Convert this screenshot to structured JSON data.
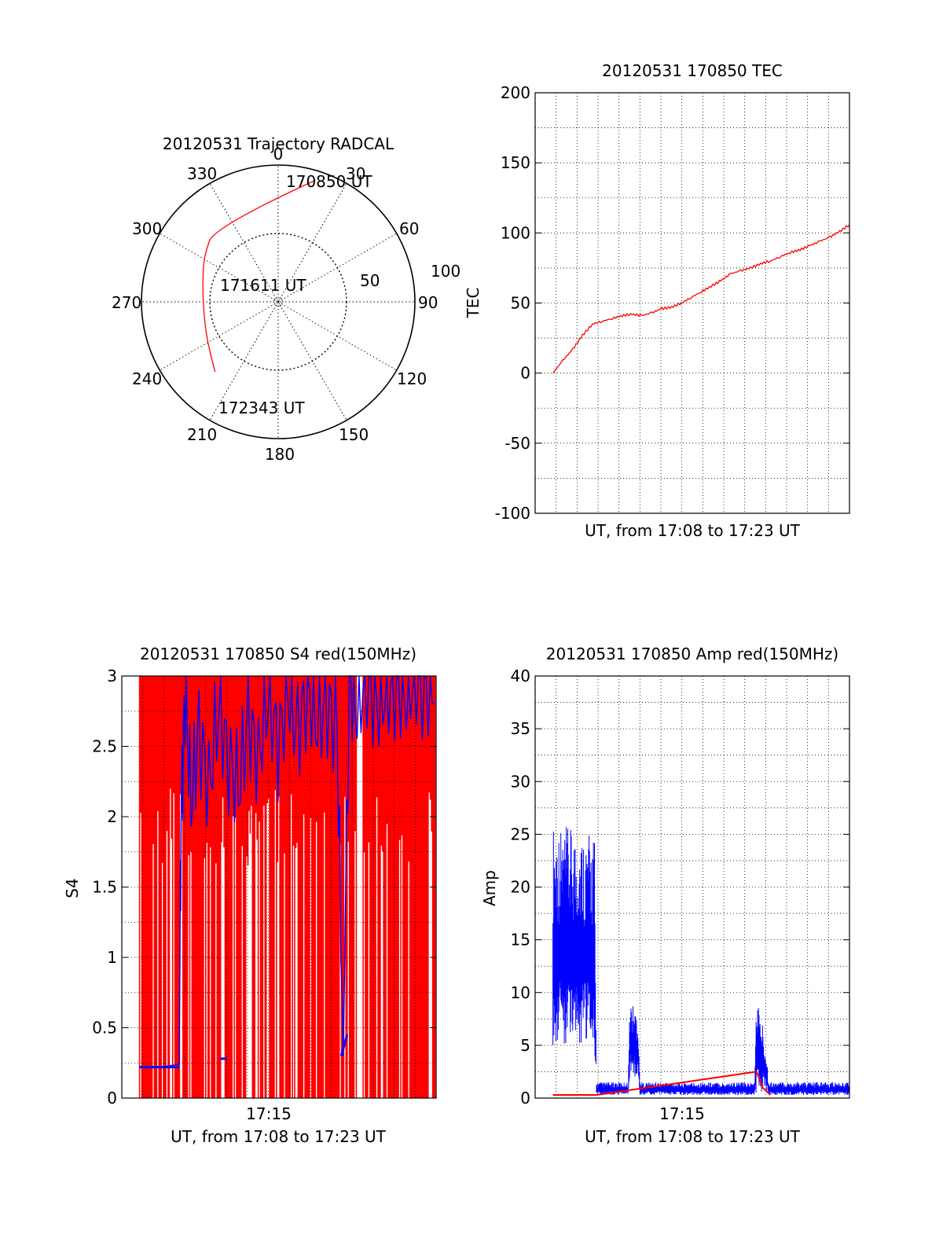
{
  "panels": {
    "polar": {
      "title": "20120531 Trajectory RADCAL",
      "angle_labels": [
        "0",
        "30",
        "60",
        "90",
        "120",
        "150",
        "180",
        "210",
        "240",
        "270",
        "300",
        "330"
      ],
      "radius_labels": [
        "50",
        "100"
      ],
      "point_labels": [
        "170850 UT",
        "171611 UT",
        "172343 UT"
      ]
    },
    "tec": {
      "title": "20120531 170850 TEC",
      "xlabel": "UT, from 17:08 to 17:23 UT",
      "ylabel": "TEC"
    },
    "s4": {
      "title": "20120531 170850 S4 red(150MHz)",
      "xlabel": "UT, from 17:08 to 17:23 UT",
      "ylabel": "S4",
      "xtick": "17:15"
    },
    "amp": {
      "title": "20120531 170850 Amp red(150MHz)",
      "xlabel": "UT, from 17:08 to 17:23 UT",
      "ylabel": "Amp",
      "xtick": "17:15"
    }
  },
  "chart_data": [
    {
      "type": "polar",
      "title": "20120531 Trajectory RADCAL",
      "angle_ticks": [
        0,
        30,
        60,
        90,
        120,
        150,
        180,
        210,
        240,
        270,
        300,
        330
      ],
      "radius_ticks": [
        50,
        100
      ],
      "rlim": [
        0,
        100
      ],
      "grid": true,
      "series": [
        {
          "color": "#ff0000",
          "points": [
            {
              "azimuth": 17,
              "r": 93,
              "label": "170850 UT"
            },
            {
              "azimuth": 320,
              "r": 72
            },
            {
              "azimuth": 302,
              "r": 64
            },
            {
              "azimuth": 284,
              "r": 57
            },
            {
              "azimuth": 262,
              "r": 55
            },
            {
              "azimuth": 242,
              "r": 59
            },
            {
              "azimuth": 222,
              "r": 69,
              "label": "172343 UT"
            }
          ]
        }
      ],
      "annotations": [
        {
          "text": "171611 UT",
          "azimuth": 280,
          "r": 26
        }
      ]
    },
    {
      "type": "line",
      "title": "20120531 170850 TEC",
      "xlabel": "UT, from 17:08 to 17:23 UT",
      "ylabel": "TEC",
      "xlim": [
        0,
        15
      ],
      "ylim": [
        -100,
        200
      ],
      "yticks": [
        -100,
        -50,
        0,
        50,
        100,
        150,
        200
      ],
      "grid": true,
      "series": [
        {
          "color": "#ff0000",
          "x": [
            0.0,
            0.5,
            1.0,
            1.5,
            2.0,
            2.5,
            3.0,
            3.5,
            4.0,
            4.5,
            5.0,
            5.5,
            6.0,
            6.5,
            7.0,
            7.5,
            8.0,
            8.5,
            9.0,
            9.5,
            10.0,
            10.5,
            11.0,
            11.5,
            12.0,
            12.5,
            13.0,
            13.5,
            14.0,
            14.5,
            15.0
          ],
          "y": [
            0,
            9,
            17,
            27,
            35,
            37,
            39,
            41,
            42,
            41,
            43,
            46,
            47,
            50,
            54,
            58,
            62,
            66,
            71,
            73,
            75,
            78,
            80,
            83,
            86,
            88,
            91,
            94,
            97,
            101,
            106
          ]
        }
      ]
    },
    {
      "type": "line",
      "title": "20120531 170850 S4 red(150MHz)",
      "xlabel": "UT, from 17:08 to 17:23 UT",
      "ylabel": "S4",
      "xlim": [
        0,
        15
      ],
      "ylim": [
        0,
        3
      ],
      "yticks": [
        0,
        0.5,
        1,
        1.5,
        2,
        2.5,
        3
      ],
      "xtick_labels": [
        {
          "x": 7,
          "label": "17:15"
        }
      ],
      "grid": true,
      "series": [
        {
          "color": "#0000ff",
          "x": [
            0.0,
            0.5,
            1.0,
            1.5,
            2.0,
            2.1,
            2.3,
            2.6,
            3.0,
            3.5,
            4.0,
            4.5,
            5.0,
            5.5,
            6.0,
            6.5,
            7.0,
            7.5,
            8.0,
            8.5,
            9.0,
            9.5,
            10.0,
            10.3,
            10.6,
            11.0,
            11.5,
            12.0,
            12.5,
            13.0,
            13.5,
            14.0,
            14.5,
            15.0
          ],
          "y": [
            0.22,
            0.22,
            0.22,
            0.23,
            0.24,
            2.0,
            2.9,
            2.1,
            2.6,
            2.2,
            2.8,
            2.4,
            2.2,
            2.7,
            2.4,
            2.9,
            2.5,
            2.9,
            2.6,
            2.9,
            2.7,
            2.8,
            2.6,
            0.3,
            2.95,
            2.8,
            3.0,
            2.8,
            2.9,
            2.95,
            2.9,
            3.0,
            2.9,
            3.0
          ]
        },
        {
          "color": "#ff0000",
          "note": "dense vertical spikes 0 to 3",
          "x_range": [
            0,
            15
          ],
          "y_range": [
            0,
            3
          ]
        }
      ]
    },
    {
      "type": "line",
      "title": "20120531 170850 Amp red(150MHz)",
      "xlabel": "UT, from 17:08 to 17:23 UT",
      "ylabel": "Amp",
      "xlim": [
        0,
        15
      ],
      "ylim": [
        0,
        40
      ],
      "yticks": [
        0,
        5,
        10,
        15,
        20,
        25,
        30,
        35,
        40
      ],
      "xtick_labels": [
        {
          "x": 7,
          "label": "17:15"
        }
      ],
      "grid": true,
      "series": [
        {
          "color": "#0000ff",
          "x": [
            0.0,
            2.1,
            2.2,
            3.8,
            3.9,
            4.3,
            4.4,
            10.2,
            10.3,
            10.8,
            10.9,
            15.0
          ],
          "y_min": [
            5,
            5,
            0.3,
            0.3,
            2,
            2,
            0.3,
            0.3,
            0.5,
            0.5,
            0.3,
            0.3
          ],
          "y_max": [
            26,
            25,
            1.5,
            1.5,
            9.5,
            8,
            1.5,
            1.5,
            10,
            5,
            1.5,
            1.5
          ]
        },
        {
          "color": "#ff0000",
          "x": [
            0.0,
            2.2,
            10.3,
            10.6,
            11.0
          ],
          "y": [
            0.3,
            0.3,
            2.5,
            1.0,
            0.3
          ]
        }
      ]
    }
  ]
}
